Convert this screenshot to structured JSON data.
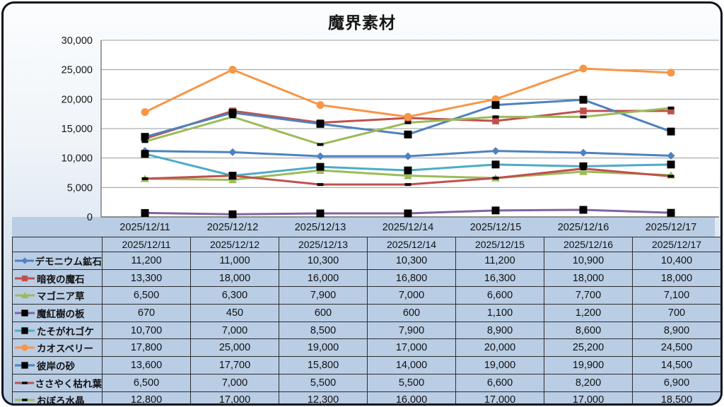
{
  "chart_title": "魔界素材",
  "chart_data": {
    "type": "line",
    "title": "魔界素材",
    "categories": [
      "2025/12/11",
      "2025/12/12",
      "2025/12/13",
      "2025/12/14",
      "2025/12/15",
      "2025/12/16",
      "2025/12/17"
    ],
    "series": [
      {
        "name": "デモニウム鉱石",
        "color": "#4F81BD",
        "marker": "diamond",
        "marker_color": "#4F81BD",
        "values": [
          11200,
          11000,
          10300,
          10300,
          11200,
          10900,
          10400
        ]
      },
      {
        "name": "暗夜の魔石",
        "color": "#C0504D",
        "marker": "square",
        "marker_color": "#C0504D",
        "values": [
          13300,
          18000,
          16000,
          16800,
          16300,
          18000,
          18000
        ]
      },
      {
        "name": "マゴニア草",
        "color": "#9BBB59",
        "marker": "triangle",
        "marker_color": "#9BBB59",
        "values": [
          6500,
          6300,
          7900,
          7000,
          6600,
          7700,
          7100
        ]
      },
      {
        "name": "魔紅樹の板",
        "color": "#8064A2",
        "marker": "square",
        "marker_color": "#000000",
        "values": [
          670,
          450,
          600,
          600,
          1100,
          1200,
          700
        ]
      },
      {
        "name": "たそがれゴケ",
        "color": "#4BACC6",
        "marker": "square",
        "marker_color": "#000000",
        "values": [
          10700,
          7000,
          8500,
          7900,
          8900,
          8600,
          8900
        ]
      },
      {
        "name": "カオスベリー",
        "color": "#F79646",
        "marker": "circle",
        "marker_color": "#F79646",
        "values": [
          17800,
          25000,
          19000,
          17000,
          20000,
          25200,
          24500
        ]
      },
      {
        "name": "彼岸の砂",
        "color": "#4F81BD",
        "marker": "square",
        "marker_color": "#000000",
        "values": [
          13600,
          17700,
          15800,
          14000,
          19000,
          19900,
          14500
        ]
      },
      {
        "name": "ささやく枯れ葉",
        "color": "#C0504D",
        "marker": "dash",
        "marker_color": "#000000",
        "values": [
          6500,
          7000,
          5500,
          5500,
          6600,
          8200,
          6900
        ]
      },
      {
        "name": "おぼろ水晶",
        "color": "#9BBB59",
        "marker": "dash",
        "marker_color": "#000000",
        "values": [
          12800,
          17000,
          12300,
          16000,
          17000,
          17000,
          18500
        ]
      }
    ],
    "ylim": [
      0,
      30000
    ],
    "ytick_step": 5000,
    "y_tick_labels": [
      "0",
      "5,000",
      "10,000",
      "15,000",
      "20,000",
      "25,000",
      "30,000"
    ],
    "grid": true,
    "legend_position": "table-left-column",
    "has_data_table": true
  },
  "style_colors": {
    "plot_background": "#ffffff",
    "gridline": "#9b9b9b",
    "axis_line": "#6e6e6e",
    "table_cell_background": "#b9cde5",
    "table_border": "#2e2e2e",
    "frame_border": "#10141f",
    "page_gradient_top": "#fbfdfe",
    "page_gradient_bottom": "#b7cbe3"
  }
}
